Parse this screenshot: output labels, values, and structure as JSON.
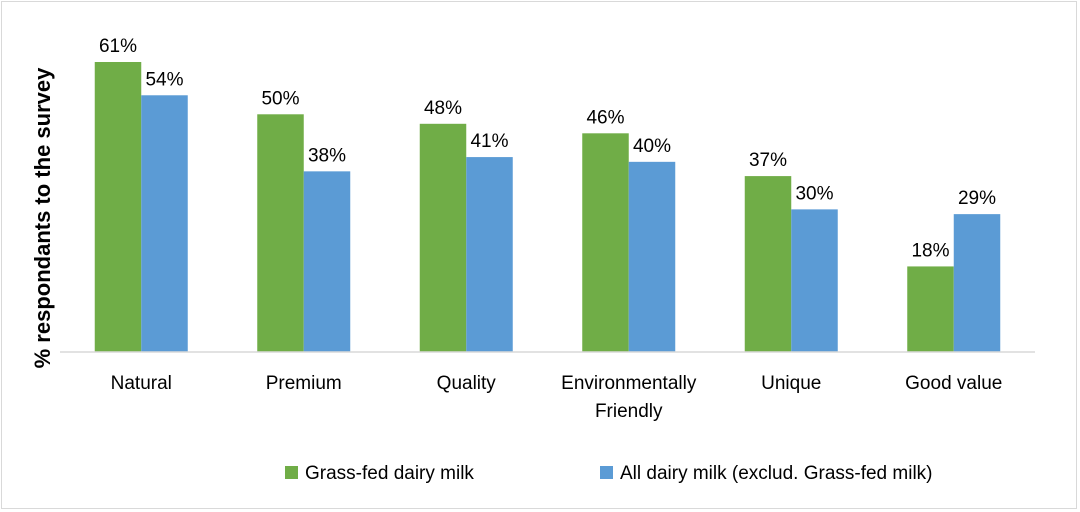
{
  "chart_data": {
    "type": "bar",
    "title": "",
    "ylabel": "% respondants to the survey",
    "xlabel": "",
    "ylim": [
      0,
      61
    ],
    "grid": false,
    "legend_position": "bottom",
    "categories": [
      [
        "Natural"
      ],
      [
        "Premium"
      ],
      [
        "Quality"
      ],
      [
        "Environmentally",
        "Friendly"
      ],
      [
        "Unique"
      ],
      [
        "Good value"
      ]
    ],
    "series": [
      {
        "name": "Grass-fed dairy milk",
        "color": "#70ad47",
        "values": [
          61,
          50,
          48,
          46,
          37,
          18
        ],
        "labels": [
          "61%",
          "50%",
          "48%",
          "46%",
          "37%",
          "18%"
        ]
      },
      {
        "name": "All dairy milk (exclud. Grass-fed milk)",
        "color": "#5b9bd5",
        "values": [
          54,
          38,
          41,
          40,
          30,
          29
        ],
        "labels": [
          "54%",
          "38%",
          "41%",
          "40%",
          "30%",
          "29%"
        ]
      }
    ]
  }
}
